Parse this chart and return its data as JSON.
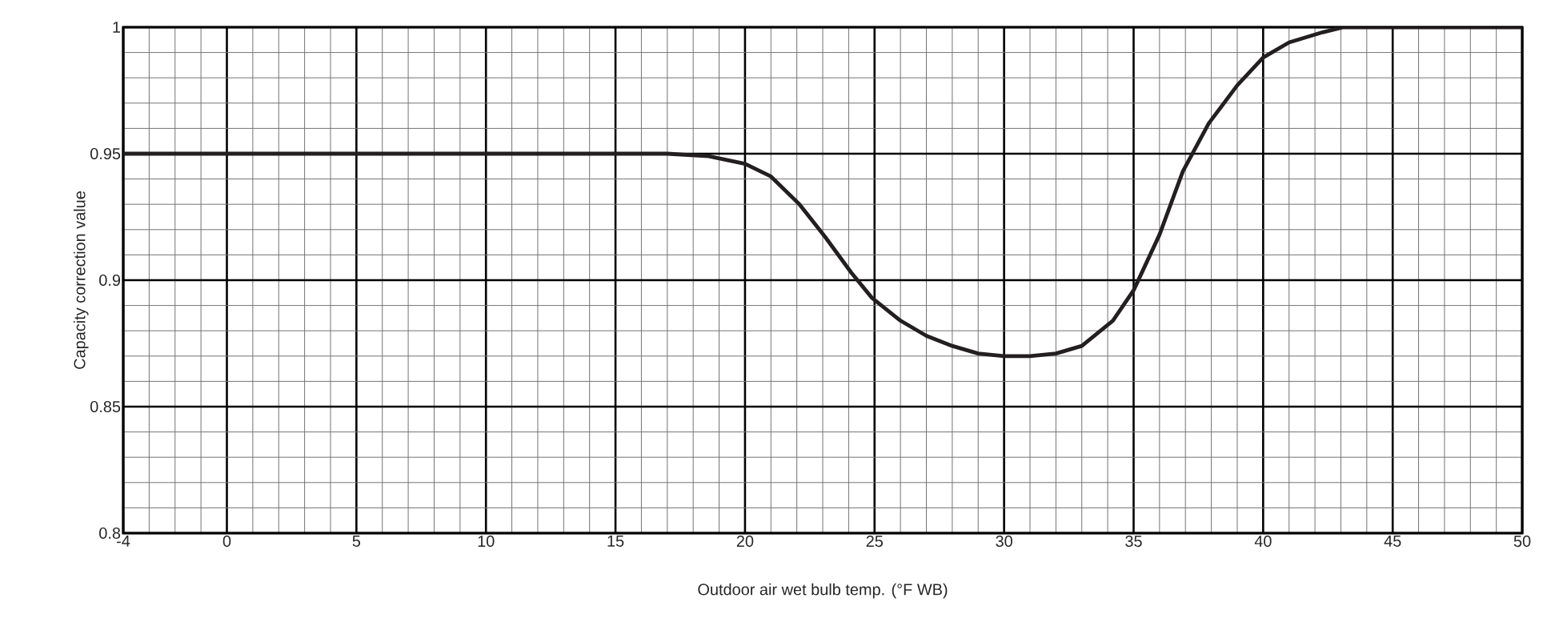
{
  "chart_data": {
    "type": "line",
    "xlabel": "Outdoor air wet bulb temp. (°F WB)",
    "ylabel": "Capacity correction value",
    "series": [
      {
        "color": "#231f20",
        "x": [
          -4,
          0,
          5,
          10,
          15,
          17,
          18.6,
          20,
          21,
          22.1,
          23.1,
          24.1,
          24.9,
          26,
          27,
          28,
          29,
          30,
          31,
          32,
          33,
          34.2,
          35,
          36,
          36.9,
          37.9,
          39,
          40,
          41,
          42.3,
          43.1,
          45,
          50
        ],
        "values": [
          0.95,
          0.95,
          0.95,
          0.95,
          0.95,
          0.95,
          0.949,
          0.946,
          0.941,
          0.93,
          0.917,
          0.903,
          0.893,
          0.884,
          0.878,
          0.874,
          0.871,
          0.87,
          0.87,
          0.871,
          0.874,
          0.884,
          0.896,
          0.918,
          0.943,
          0.962,
          0.977,
          0.988,
          0.994,
          0.998,
          1.0,
          1.0,
          1.0
        ]
      }
    ],
    "xlim": [
      -4,
      50
    ],
    "ylim": [
      0.8,
      1
    ],
    "xticks": [
      -4,
      0,
      5,
      10,
      15,
      20,
      25,
      30,
      35,
      40,
      45,
      50
    ],
    "yticks": [
      0.8,
      0.85,
      0.9,
      0.95,
      1
    ],
    "grid": true,
    "marker": "none",
    "line_style": "solid"
  }
}
